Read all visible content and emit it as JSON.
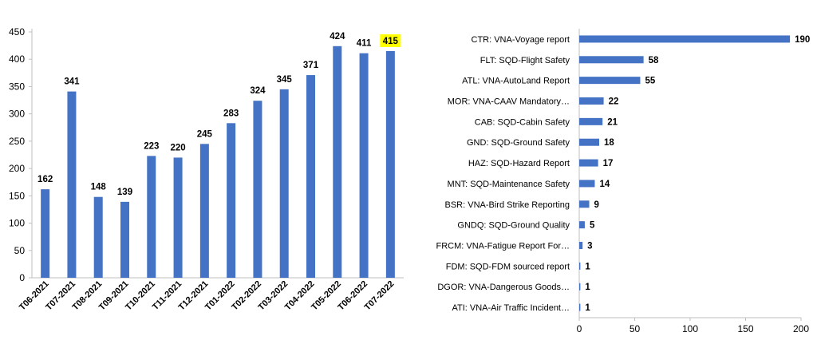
{
  "chart_data": [
    {
      "type": "bar",
      "orientation": "vertical",
      "categories": [
        "T06-2021",
        "T07-2021",
        "T08-2021",
        "T09-2021",
        "T10-2021",
        "T11-2021",
        "T12-2021",
        "T01-2022",
        "T02-2022",
        "T03-2022",
        "T04-2022",
        "T05-2022",
        "T06-2022",
        "T07-2022"
      ],
      "values": [
        162,
        341,
        148,
        139,
        223,
        220,
        245,
        283,
        324,
        345,
        371,
        424,
        411,
        415
      ],
      "ylim": [
        0,
        450
      ],
      "yticks": [
        0,
        50,
        100,
        150,
        200,
        250,
        300,
        350,
        400,
        450
      ],
      "bar_color": "#4472c4",
      "highlight": {
        "index": 13,
        "label_background": "#ffff00"
      },
      "grid": false
    },
    {
      "type": "bar",
      "orientation": "horizontal",
      "categories": [
        "CTR: VNA-Voyage report",
        "FLT: SQD-Flight Safety",
        "ATL: VNA-AutoLand Report",
        "MOR: VNA-CAAV Mandatory…",
        "CAB: SQD-Cabin Safety",
        "GND: SQD-Ground Safety",
        "HAZ: SQD-Hazard Report",
        "MNT: SQD-Maintenance Safety",
        "BSR: VNA-Bird Strike Reporting",
        "GNDQ: SQD-Ground Quality",
        "FRCM: VNA-Fatigue Report For…",
        "FDM: SQD-FDM sourced report",
        "DGOR: VNA-Dangerous Goods…",
        "ATI: VNA-Air Traffic Incident…"
      ],
      "values": [
        190,
        58,
        55,
        22,
        21,
        18,
        17,
        14,
        9,
        5,
        3,
        1,
        1,
        1
      ],
      "xlim": [
        0,
        200
      ],
      "xticks": [
        0,
        50,
        100,
        150,
        200
      ],
      "bar_color": "#4472c4",
      "grid": false
    }
  ]
}
